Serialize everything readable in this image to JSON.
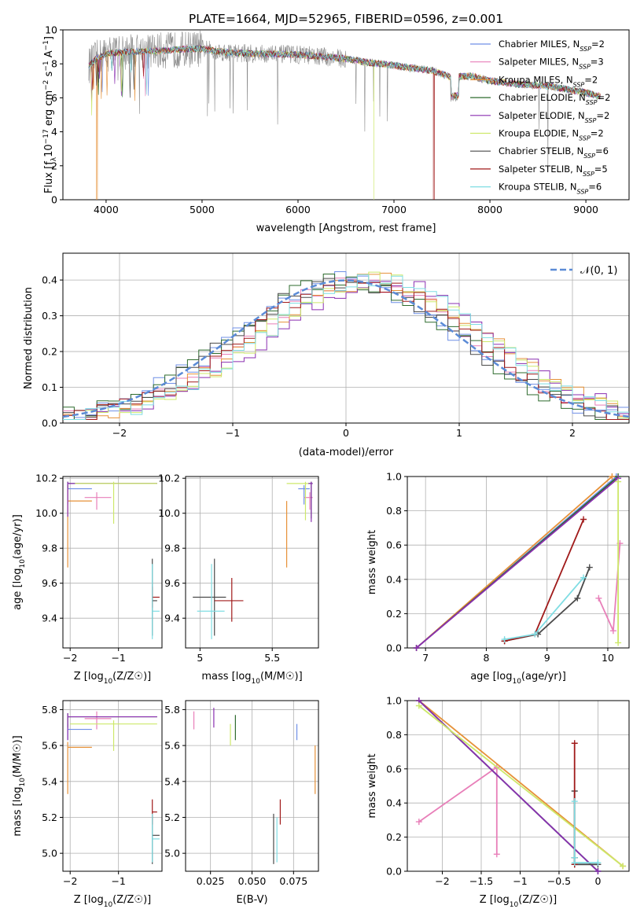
{
  "title": "PLATE=1664, MJD=52965, FIBERID=0596, z=0.001",
  "colors": {
    "chabrier_miles": "#6f8fe6",
    "salpeter_miles": "#e87fb9",
    "kroupa_miles": "#e69138",
    "chabrier_elodie": "#2d6b2d",
    "salpeter_elodie": "#8a2fb0",
    "kroupa_elodie": "#cde86a",
    "chabrier_stelib": "#4a4a4a",
    "salpeter_stelib": "#a01a1a",
    "kroupa_stelib": "#7fdde3",
    "observed": "#8c8c8c",
    "gaussian": "#5b8bd6"
  },
  "chart_data": [
    {
      "type": "line",
      "id": "spectrum",
      "xlabel": "wavelength [Angstrom, rest frame]",
      "ylabel": "Flux [f_λ10^-17 erg cm^-2 s^-1 A^-1]",
      "xlim": [
        3550,
        9450
      ],
      "ylim": [
        0,
        10
      ],
      "xticks": [
        4000,
        5000,
        6000,
        7000,
        8000,
        9000
      ],
      "yticks": [
        0,
        2,
        4,
        6,
        8,
        10
      ],
      "legend_position": "top-right",
      "legend": [
        {
          "key": "chabrier_miles",
          "label": "Chabrier MILES, N",
          "sub": "SSP",
          "eq": "=2"
        },
        {
          "key": "salpeter_miles",
          "label": "Salpeter MILES, N",
          "sub": "SSP",
          "eq": "=3"
        },
        {
          "key": "kroupa_miles",
          "label": "Kroupa MILES, N",
          "sub": "SSP",
          "eq": "=2"
        },
        {
          "key": "chabrier_elodie",
          "label": "Chabrier ELODIE, N",
          "sub": "SSP",
          "eq": "=2"
        },
        {
          "key": "salpeter_elodie",
          "label": "Salpeter ELODIE, N",
          "sub": "SSP",
          "eq": "=2"
        },
        {
          "key": "kroupa_elodie",
          "label": "Kroupa ELODIE, N",
          "sub": "SSP",
          "eq": "=2"
        },
        {
          "key": "chabrier_stelib",
          "label": "Chabrier STELIB, N",
          "sub": "SSP",
          "eq": "=6"
        },
        {
          "key": "salpeter_stelib",
          "label": "Salpeter STELIB, N",
          "sub": "SSP",
          "eq": "=5"
        },
        {
          "key": "kroupa_stelib",
          "label": "Kroupa STELIB, N",
          "sub": "SSP",
          "eq": "=6"
        }
      ],
      "continuum": [
        [
          3820,
          7.9
        ],
        [
          3900,
          8.3
        ],
        [
          4000,
          8.6
        ],
        [
          4200,
          8.7
        ],
        [
          4500,
          8.75
        ],
        [
          4800,
          8.85
        ],
        [
          5000,
          8.9
        ],
        [
          5200,
          8.7
        ],
        [
          5500,
          8.6
        ],
        [
          6000,
          8.55
        ],
        [
          6500,
          8.3
        ],
        [
          6700,
          8.1
        ],
        [
          7000,
          7.9
        ],
        [
          7400,
          7.6
        ],
        [
          7600,
          7.2
        ],
        [
          7800,
          7.3
        ],
        [
          8000,
          7.0
        ],
        [
          8300,
          6.8
        ],
        [
          8600,
          6.7
        ],
        [
          8800,
          6.5
        ],
        [
          9000,
          6.3
        ],
        [
          9150,
          6.1
        ]
      ],
      "dropouts": [
        {
          "key": "kroupa_miles",
          "x": 3905
        },
        {
          "key": "kroupa_elodie",
          "x": 6790
        },
        {
          "key": "salpeter_stelib",
          "x": 7415
        }
      ]
    },
    {
      "type": "histogram",
      "id": "residuals",
      "xlabel": "(data-model)/error",
      "ylabel": "Normed distribution",
      "xlim": [
        -2.5,
        2.5
      ],
      "ylim": [
        0,
        0.475
      ],
      "xticks": [
        -2,
        -1,
        0,
        1,
        2
      ],
      "yticks": [
        0.0,
        0.1,
        0.2,
        0.3,
        0.4
      ],
      "grid": true,
      "legend_position": "top-right",
      "gaussian_label": "𝒩(0, 1)",
      "bin_width": 0.1
    },
    {
      "type": "scatter",
      "id": "age-vs-z",
      "xlabel": "Z [log10(Z/Z☉)]",
      "ylabel": "age [log10(age/yr)]",
      "xlim": [
        -2.15,
        -0.1
      ],
      "ylim": [
        9.23,
        10.21
      ],
      "xticks": [
        -2,
        -1
      ],
      "yticks": [
        9.4,
        9.6,
        9.8,
        10.0,
        10.2
      ],
      "grid": true,
      "points": [
        {
          "key": "chabrier_miles",
          "x": -2.05,
          "y": 10.14,
          "xlo": -2.05,
          "xhi": -1.55,
          "ylo": 10.05,
          "yhi": 10.16
        },
        {
          "key": "salpeter_miles",
          "x": -1.45,
          "y": 10.09,
          "xlo": -1.7,
          "xhi": -1.15,
          "ylo": 10.02,
          "yhi": 10.12
        },
        {
          "key": "kroupa_miles",
          "x": -2.05,
          "y": 10.07,
          "xlo": -2.05,
          "xhi": -1.55,
          "ylo": 9.69,
          "yhi": 10.16
        },
        {
          "key": "chabrier_elodie",
          "x": -2.05,
          "y": 10.17,
          "xlo": -2.05,
          "xhi": -0.2,
          "ylo": 10.14,
          "yhi": 10.18
        },
        {
          "key": "salpeter_elodie",
          "x": -2.05,
          "y": 10.17,
          "xlo": -2.05,
          "xhi": -0.2,
          "ylo": 9.98,
          "yhi": 10.18
        },
        {
          "key": "kroupa_elodie",
          "x": -1.1,
          "y": 10.17,
          "xlo": -1.9,
          "xhi": -0.2,
          "ylo": 9.94,
          "yhi": 10.18
        },
        {
          "key": "chabrier_stelib",
          "x": -0.3,
          "y": 9.5,
          "xlo": -0.3,
          "xhi": -0.2,
          "ylo": 9.3,
          "yhi": 9.74
        },
        {
          "key": "salpeter_stelib",
          "x": -0.3,
          "y": 9.52,
          "xlo": -0.3,
          "xhi": -0.15,
          "ylo": 9.46,
          "yhi": 9.58
        },
        {
          "key": "kroupa_stelib",
          "x": -0.3,
          "y": 9.44,
          "xlo": -0.3,
          "xhi": -0.15,
          "ylo": 9.28,
          "yhi": 9.71
        }
      ]
    },
    {
      "type": "scatter",
      "id": "age-vs-mass",
      "xlabel": "mass [log10(M/M☉)]",
      "ylabel": "",
      "xlim": [
        4.9,
        5.82
      ],
      "ylim": [
        9.23,
        10.21
      ],
      "xticks": [
        5.0,
        5.5
      ],
      "yticks": [
        9.4,
        9.6,
        9.8,
        10.0,
        10.2
      ],
      "grid": true,
      "points": [
        {
          "key": "chabrier_miles",
          "x": 5.72,
          "y": 10.14,
          "xlo": 5.68,
          "xhi": 5.76,
          "ylo": 10.05,
          "yhi": 10.16
        },
        {
          "key": "salpeter_miles",
          "x": 5.76,
          "y": 10.09,
          "xlo": 5.72,
          "xhi": 5.78,
          "ylo": 10.02,
          "yhi": 10.12
        },
        {
          "key": "kroupa_miles",
          "x": 5.6,
          "y": 10.07,
          "xlo": 5.6,
          "xhi": 5.6,
          "ylo": 9.69,
          "yhi": 10.07
        },
        {
          "key": "chabrier_elodie",
          "x": 5.77,
          "y": 10.17,
          "xlo": 5.75,
          "xhi": 5.78,
          "ylo": 9.97,
          "yhi": 10.18
        },
        {
          "key": "salpeter_elodie",
          "x": 5.77,
          "y": 10.17,
          "xlo": 5.75,
          "xhi": 5.78,
          "ylo": 9.95,
          "yhi": 10.18
        },
        {
          "key": "kroupa_elodie",
          "x": 5.73,
          "y": 10.17,
          "xlo": 5.6,
          "xhi": 5.75,
          "ylo": 9.96,
          "yhi": 10.18
        },
        {
          "key": "chabrier_stelib",
          "x": 5.1,
          "y": 9.52,
          "xlo": 4.95,
          "xhi": 5.18,
          "ylo": 9.3,
          "yhi": 9.74
        },
        {
          "key": "salpeter_stelib",
          "x": 5.22,
          "y": 9.5,
          "xlo": 5.1,
          "xhi": 5.3,
          "ylo": 9.38,
          "yhi": 9.63
        },
        {
          "key": "kroupa_stelib",
          "x": 5.08,
          "y": 9.44,
          "xlo": 4.98,
          "xhi": 5.17,
          "ylo": 9.28,
          "yhi": 9.71
        }
      ]
    },
    {
      "type": "line",
      "id": "massweight-vs-age",
      "xlabel": "age [log10(age/yr)]",
      "ylabel": "mass weight",
      "xlim": [
        6.7,
        10.35
      ],
      "ylim": [
        0,
        1
      ],
      "xticks": [
        7,
        8,
        9,
        10
      ],
      "yticks": [
        0.0,
        0.2,
        0.4,
        0.6,
        0.8,
        1.0
      ],
      "grid": true,
      "series": [
        {
          "key": "chabrier_miles",
          "x": [
            6.85,
            10.14
          ],
          "y": [
            0.0,
            1.0
          ]
        },
        {
          "key": "salpeter_miles",
          "x": [
            9.85,
            10.09,
            10.2
          ],
          "y": [
            0.29,
            0.1,
            0.61
          ]
        },
        {
          "key": "kroupa_miles",
          "x": [
            6.85,
            10.07
          ],
          "y": [
            0.0,
            1.0
          ]
        },
        {
          "key": "chabrier_elodie",
          "x": [
            6.85,
            10.17
          ],
          "y": [
            0.0,
            1.0
          ]
        },
        {
          "key": "salpeter_elodie",
          "x": [
            6.85,
            10.17
          ],
          "y": [
            0.0,
            0.99
          ]
        },
        {
          "key": "kroupa_elodie",
          "x": [
            10.17,
            10.17
          ],
          "y": [
            0.03,
            0.97
          ]
        },
        {
          "key": "chabrier_stelib",
          "x": [
            8.3,
            8.85,
            9.5,
            9.7
          ],
          "y": [
            0.04,
            0.08,
            0.29,
            0.47
          ]
        },
        {
          "key": "salpeter_stelib",
          "x": [
            8.3,
            8.8,
            9.6
          ],
          "y": [
            0.04,
            0.08,
            0.75
          ]
        },
        {
          "key": "kroupa_stelib",
          "x": [
            8.3,
            8.8,
            9.6
          ],
          "y": [
            0.05,
            0.08,
            0.41
          ]
        }
      ]
    },
    {
      "type": "scatter",
      "id": "mass-vs-z",
      "xlabel": "Z [log10(Z/Z☉)]",
      "ylabel": "mass [log10(M/M☉)]",
      "xlim": [
        -2.15,
        -0.1
      ],
      "ylim": [
        4.9,
        5.85
      ],
      "xticks": [
        -2,
        -1
      ],
      "yticks": [
        5.0,
        5.2,
        5.4,
        5.6,
        5.8
      ],
      "grid": true,
      "points": [
        {
          "key": "chabrier_miles",
          "x": -2.05,
          "y": 5.69,
          "xlo": -2.05,
          "xhi": -1.55,
          "ylo": 5.63,
          "yhi": 5.72
        },
        {
          "key": "salpeter_miles",
          "x": -1.45,
          "y": 5.75,
          "xlo": -1.7,
          "xhi": -1.15,
          "ylo": 5.69,
          "yhi": 5.79
        },
        {
          "key": "kroupa_miles",
          "x": -2.05,
          "y": 5.59,
          "xlo": -2.05,
          "xhi": -1.55,
          "ylo": 5.33,
          "yhi": 5.62
        },
        {
          "key": "chabrier_elodie",
          "x": -2.05,
          "y": 5.76,
          "xlo": -2.05,
          "xhi": -0.2,
          "ylo": 5.7,
          "yhi": 5.78
        },
        {
          "key": "salpeter_elodie",
          "x": -2.05,
          "y": 5.76,
          "xlo": -2.05,
          "xhi": -0.2,
          "ylo": 5.63,
          "yhi": 5.78
        },
        {
          "key": "kroupa_elodie",
          "x": -1.1,
          "y": 5.72,
          "xlo": -2.0,
          "xhi": -0.2,
          "ylo": 5.57,
          "yhi": 5.74
        },
        {
          "key": "chabrier_stelib",
          "x": -0.3,
          "y": 5.1,
          "xlo": -0.3,
          "xhi": -0.15,
          "ylo": 4.94,
          "yhi": 5.2
        },
        {
          "key": "salpeter_stelib",
          "x": -0.3,
          "y": 5.23,
          "xlo": -0.3,
          "xhi": -0.2,
          "ylo": 5.16,
          "yhi": 5.3
        },
        {
          "key": "kroupa_stelib",
          "x": -0.3,
          "y": 5.08,
          "xlo": -0.3,
          "xhi": -0.15,
          "ylo": 4.95,
          "yhi": 5.22
        }
      ]
    },
    {
      "type": "scatter",
      "id": "mass-vs-ebv",
      "xlabel": "E(B-V)",
      "ylabel": "",
      "xlim": [
        0.01,
        0.09
      ],
      "ylim": [
        4.9,
        5.85
      ],
      "xticks": [
        0.025,
        0.05,
        0.075
      ],
      "xtick_labels": [
        "0.025",
        "0.050",
        "0.075"
      ],
      "yticks": [
        5.0,
        5.2,
        5.4,
        5.6,
        5.8
      ],
      "grid": true,
      "points": [
        {
          "key": "chabrier_miles",
          "x": 0.077,
          "y": 5.69,
          "xlo": 0.077,
          "xhi": 0.077,
          "ylo": 5.63,
          "yhi": 5.72
        },
        {
          "key": "salpeter_miles",
          "x": 0.015,
          "y": 5.75,
          "xlo": 0.015,
          "xhi": 0.015,
          "ylo": 5.69,
          "yhi": 5.79
        },
        {
          "key": "kroupa_miles",
          "x": 0.088,
          "y": 5.59,
          "xlo": 0.088,
          "xhi": 0.088,
          "ylo": 5.33,
          "yhi": 5.6
        },
        {
          "key": "chabrier_elodie",
          "x": 0.04,
          "y": 5.7,
          "xlo": 0.04,
          "xhi": 0.04,
          "ylo": 5.63,
          "yhi": 5.77
        },
        {
          "key": "salpeter_elodie",
          "x": 0.027,
          "y": 5.76,
          "xlo": 0.027,
          "xhi": 0.027,
          "ylo": 5.7,
          "yhi": 5.81
        },
        {
          "key": "kroupa_elodie",
          "x": 0.037,
          "y": 5.69,
          "xlo": 0.037,
          "xhi": 0.037,
          "ylo": 5.6,
          "yhi": 5.72
        },
        {
          "key": "chabrier_stelib",
          "x": 0.063,
          "y": 5.1,
          "xlo": 0.063,
          "xhi": 0.063,
          "ylo": 4.94,
          "yhi": 5.22
        },
        {
          "key": "salpeter_stelib",
          "x": 0.067,
          "y": 5.23,
          "xlo": 0.067,
          "xhi": 0.067,
          "ylo": 5.16,
          "yhi": 5.3
        },
        {
          "key": "kroupa_stelib",
          "x": 0.065,
          "y": 5.08,
          "xlo": 0.065,
          "xhi": 0.065,
          "ylo": 4.95,
          "yhi": 5.2
        }
      ]
    },
    {
      "type": "line",
      "id": "massweight-vs-z",
      "xlabel": "Z [log10(Z/Z☉)]",
      "ylabel": "mass weight",
      "xlim": [
        -2.45,
        0.4
      ],
      "ylim": [
        0,
        1
      ],
      "xticks": [
        -2.0,
        -1.5,
        -1.0,
        -0.5,
        0.0
      ],
      "yticks": [
        0.0,
        0.2,
        0.4,
        0.6,
        0.8,
        1.0
      ],
      "grid": true,
      "series": [
        {
          "key": "chabrier_miles",
          "x": [
            -2.3,
            0.0
          ],
          "y": [
            1.0,
            0.0
          ]
        },
        {
          "key": "salpeter_miles",
          "x": [
            -2.3,
            -1.3,
            -1.3
          ],
          "y": [
            0.29,
            0.61,
            0.1
          ]
        },
        {
          "key": "kroupa_miles",
          "x": [
            -2.3,
            0.32
          ],
          "y": [
            1.0,
            0.03
          ]
        },
        {
          "key": "chabrier_elodie",
          "x": [
            -2.3,
            0.0
          ],
          "y": [
            1.0,
            0.0
          ]
        },
        {
          "key": "salpeter_elodie",
          "x": [
            -2.3,
            0.0
          ],
          "y": [
            1.0,
            0.0
          ]
        },
        {
          "key": "kroupa_elodie",
          "x": [
            -2.3,
            0.32
          ],
          "y": [
            0.97,
            0.03
          ]
        },
        {
          "key": "chabrier_stelib",
          "x": [
            -0.3,
            -0.3,
            -0.3,
            0.0
          ],
          "y": [
            0.47,
            0.08,
            0.04,
            0.04
          ]
        },
        {
          "key": "salpeter_stelib",
          "x": [
            -0.3,
            -0.3,
            -0.3
          ],
          "y": [
            0.75,
            0.08,
            0.04
          ]
        },
        {
          "key": "kroupa_stelib",
          "x": [
            -0.3,
            -0.3,
            -0.3,
            0.0
          ],
          "y": [
            0.41,
            0.08,
            0.05,
            0.05
          ]
        }
      ]
    }
  ]
}
